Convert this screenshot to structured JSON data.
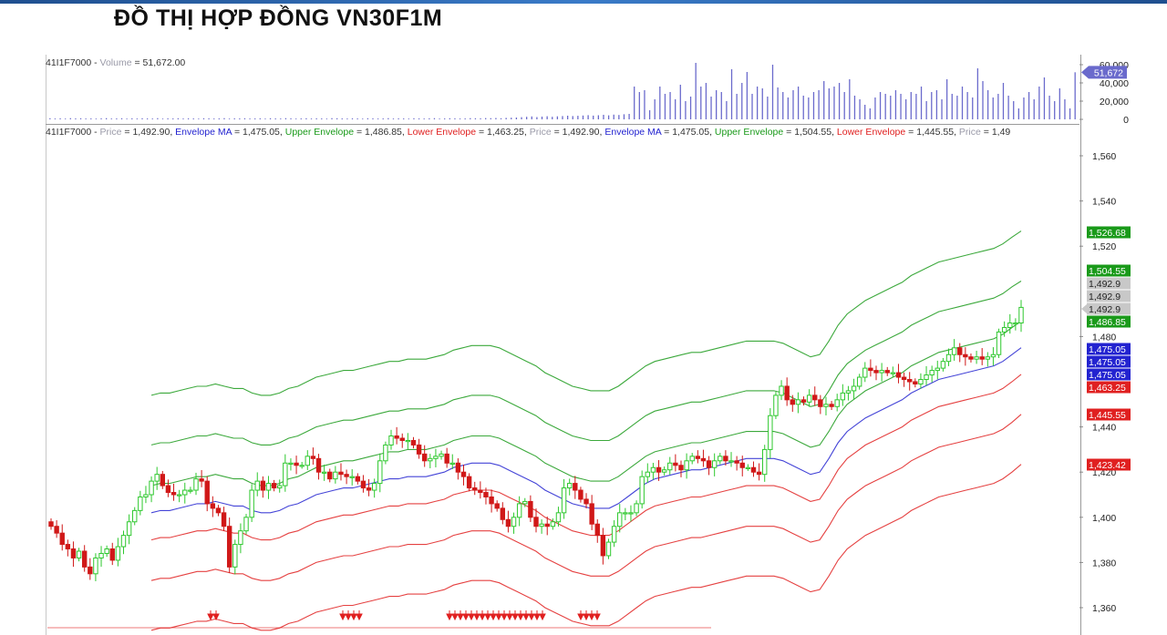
{
  "page": {
    "title": "ĐỒ THỊ HỢP ĐỒNG VN30F1M"
  },
  "legend_volume": {
    "symbol": "41I1F7000 - ",
    "volume_label": "Volume",
    "volume_text": " = 51,672.00"
  },
  "legend_price": {
    "symbol": "41I1F7000 - ",
    "items": [
      {
        "label": "Price",
        "value": " = 1,492.90, ",
        "color": "#9a9aa8"
      },
      {
        "label": "Envelope MA",
        "value": " = 1,475.05, ",
        "color": "#2323d0"
      },
      {
        "label": "Upper Envelope",
        "value": " = 1,486.85, ",
        "color": "#1a9a1a"
      },
      {
        "label": "Lower Envelope",
        "value": " = 1,463.25, ",
        "color": "#e02020"
      },
      {
        "label": "Price",
        "value": " = 1,492.90, ",
        "color": "#9a9aa8"
      },
      {
        "label": "Envelope MA",
        "value": " = 1,475.05, ",
        "color": "#2323d0"
      },
      {
        "label": "Upper Envelope",
        "value": " = 1,504.55, ",
        "color": "#1a9a1a"
      },
      {
        "label": "Lower Envelope",
        "value": " = 1,445.55, ",
        "color": "#e02020"
      },
      {
        "label": "Price",
        "value": " = 1,49",
        "color": "#9a9aa8"
      }
    ]
  },
  "chart_data": [
    {
      "type": "bar",
      "name": "Volume",
      "y_ticks": [
        "60,000",
        "40,000",
        "20,000",
        "0"
      ],
      "y_tick_values": [
        60000,
        40000,
        20000,
        0
      ],
      "ylim": [
        0,
        60000
      ],
      "last_value_tag": "51,672",
      "values": [
        1200,
        900,
        1100,
        800,
        1300,
        1000,
        1200,
        900,
        1000,
        800,
        1100,
        1300,
        900,
        1000,
        1200,
        800,
        1100,
        900,
        1200,
        1000,
        900,
        1300,
        800,
        1100,
        1000,
        1200,
        900,
        1100,
        1000,
        800,
        1200,
        1100,
        900,
        1000,
        1300,
        800,
        1100,
        1000,
        1200,
        900,
        1000,
        1100,
        800,
        1200,
        1000,
        900,
        1300,
        1100,
        800,
        1000,
        1200,
        900,
        1100,
        1000,
        800,
        1300,
        1200,
        1000,
        900,
        1100,
        1000,
        800,
        1200,
        1100,
        900,
        1000,
        1300,
        900,
        1100,
        1000,
        800,
        1200,
        1000,
        900,
        1100,
        1300,
        800,
        1000,
        1200,
        1100,
        900,
        1000,
        1300,
        1200,
        1100,
        1400,
        1300,
        1500,
        1200,
        1600,
        1800,
        2000,
        2400,
        2800,
        3200,
        2500,
        3000,
        3400,
        2800,
        3300,
        3600,
        4000,
        3600,
        3900,
        4200,
        4600,
        4100,
        4500,
        5000,
        4400,
        5200,
        4800,
        5600,
        6000,
        36000,
        30000,
        32000,
        10000,
        22000,
        36000,
        28000,
        30000,
        22000,
        38000,
        20000,
        25000,
        62000,
        36000,
        40000,
        25000,
        32000,
        30000,
        20000,
        55000,
        28000,
        40000,
        52000,
        28000,
        36000,
        34000,
        25000,
        60000,
        35000,
        30000,
        24000,
        32000,
        36000,
        26000,
        24000,
        30000,
        32000,
        42000,
        34000,
        36000,
        40000,
        30000,
        44000,
        26000,
        22000,
        16000,
        12000,
        24000,
        30000,
        28000,
        26000,
        32000,
        28000,
        22000,
        30000,
        28000,
        36000,
        20000,
        30000,
        32000,
        22000,
        44000,
        28000,
        26000,
        36000,
        30000,
        24000,
        56000,
        42000,
        32000,
        24000,
        28000,
        40000,
        26000,
        20000,
        12000,
        24000,
        30000,
        22000,
        36000,
        46000,
        26000,
        20000,
        34000,
        22000,
        12000,
        51672
      ]
    },
    {
      "type": "candlestick",
      "name": "Price",
      "y_ticks": [
        "1,560",
        "1,540",
        "1,520",
        "1,480",
        "1,440",
        "1,420",
        "1,400",
        "1,380",
        "1,360"
      ],
      "y_tick_values": [
        1560,
        1540,
        1520,
        1480,
        1440,
        1420,
        1400,
        1380,
        1360
      ],
      "ylim": [
        1355,
        1570
      ],
      "closes": [
        1396,
        1393,
        1388,
        1386,
        1382,
        1385,
        1378,
        1375,
        1382,
        1384,
        1386,
        1381,
        1387,
        1392,
        1398,
        1403,
        1409,
        1410,
        1416,
        1419,
        1414,
        1411,
        1410,
        1410,
        1412,
        1412,
        1417,
        1416,
        1406,
        1404,
        1402,
        1396,
        1378,
        1388,
        1394,
        1400,
        1412,
        1416,
        1412,
        1415,
        1413,
        1414,
        1424,
        1424,
        1423,
        1423,
        1427,
        1426,
        1420,
        1420,
        1417,
        1420,
        1419,
        1418,
        1418,
        1416,
        1413,
        1412,
        1415,
        1425,
        1432,
        1436,
        1435,
        1434,
        1434,
        1432,
        1428,
        1425,
        1426,
        1427,
        1428,
        1424,
        1424,
        1420,
        1418,
        1413,
        1412,
        1411,
        1409,
        1406,
        1404,
        1399,
        1396,
        1400,
        1406,
        1407,
        1400,
        1396,
        1397,
        1396,
        1398,
        1402,
        1413,
        1415,
        1412,
        1408,
        1406,
        1397,
        1392,
        1383,
        1389,
        1396,
        1402,
        1402,
        1402,
        1406,
        1418,
        1420,
        1422,
        1420,
        1421,
        1424,
        1423,
        1421,
        1425,
        1427,
        1426,
        1425,
        1422,
        1425,
        1427,
        1425,
        1425,
        1424,
        1422,
        1422,
        1420,
        1419,
        1430,
        1445,
        1454,
        1458,
        1452,
        1450,
        1452,
        1451,
        1454,
        1452,
        1449,
        1450,
        1449,
        1452,
        1455,
        1456,
        1458,
        1462,
        1466,
        1465,
        1464,
        1465,
        1464,
        1464,
        1462,
        1461,
        1460,
        1459,
        1461,
        1463,
        1465,
        1466,
        1469,
        1472,
        1475,
        1472,
        1471,
        1470,
        1471,
        1470,
        1471,
        1472,
        1482,
        1484,
        1486,
        1486,
        1492.9
      ],
      "last_value_tag": "1,492.9"
    },
    {
      "type": "line",
      "name": "Envelope MA",
      "color": "#2323d0",
      "values": [
        1402,
        1403,
        1403,
        1404,
        1405,
        1406,
        1406,
        1407,
        1406,
        1405,
        1405,
        1403,
        1402,
        1402,
        1403,
        1405,
        1406,
        1408,
        1410,
        1411,
        1412,
        1413,
        1413,
        1414,
        1415,
        1416,
        1417,
        1417,
        1418,
        1418,
        1418,
        1419,
        1420,
        1422,
        1423,
        1424,
        1424,
        1424,
        1423,
        1421,
        1419,
        1417,
        1415,
        1412,
        1410,
        1408,
        1406,
        1405,
        1404,
        1404,
        1404,
        1406,
        1409,
        1412,
        1415,
        1417,
        1418,
        1419,
        1420,
        1421,
        1421,
        1422,
        1423,
        1424,
        1425,
        1426,
        1426,
        1426,
        1426,
        1425,
        1423,
        1421,
        1419,
        1420,
        1426,
        1433,
        1438,
        1441,
        1444,
        1446,
        1448,
        1450,
        1452,
        1455,
        1457,
        1459,
        1461,
        1462,
        1463,
        1464,
        1465,
        1466,
        1467,
        1469,
        1472,
        1475.05
      ]
    },
    {
      "type": "line",
      "name": "Upper Envelope",
      "color": "#1a9a1a",
      "values": [
        1414,
        1415,
        1415,
        1416,
        1417,
        1418,
        1418,
        1419,
        1418,
        1417,
        1417,
        1415,
        1414,
        1414,
        1415,
        1417,
        1418,
        1420,
        1422,
        1423,
        1424,
        1425,
        1425,
        1426,
        1427,
        1428,
        1429,
        1429,
        1430,
        1430,
        1430,
        1431,
        1432,
        1434,
        1435,
        1436,
        1436,
        1436,
        1435,
        1433,
        1431,
        1429,
        1427,
        1424,
        1422,
        1420,
        1418,
        1417,
        1416,
        1416,
        1416,
        1418,
        1421,
        1424,
        1427,
        1429,
        1430,
        1431,
        1432,
        1433,
        1433,
        1434,
        1435,
        1436,
        1437,
        1438,
        1438,
        1438,
        1438,
        1437,
        1435,
        1433,
        1431,
        1432,
        1438,
        1445,
        1450,
        1453,
        1456,
        1458,
        1460,
        1462,
        1464,
        1467,
        1469,
        1471,
        1473,
        1474,
        1475,
        1476,
        1477,
        1478,
        1479,
        1481,
        1484,
        1486.85
      ]
    },
    {
      "type": "line",
      "name": "Lower Envelope",
      "color": "#e02020",
      "values": [
        1390,
        1391,
        1391,
        1392,
        1393,
        1394,
        1394,
        1395,
        1394,
        1393,
        1393,
        1391,
        1390,
        1390,
        1391,
        1393,
        1394,
        1396,
        1398,
        1399,
        1400,
        1401,
        1401,
        1402,
        1403,
        1404,
        1405,
        1405,
        1406,
        1406,
        1406,
        1407,
        1408,
        1410,
        1411,
        1412,
        1412,
        1412,
        1411,
        1409,
        1407,
        1405,
        1403,
        1400,
        1398,
        1396,
        1394,
        1393,
        1392,
        1392,
        1392,
        1394,
        1397,
        1400,
        1403,
        1405,
        1406,
        1407,
        1408,
        1409,
        1409,
        1410,
        1411,
        1412,
        1413,
        1414,
        1414,
        1414,
        1414,
        1413,
        1411,
        1409,
        1407,
        1408,
        1414,
        1421,
        1426,
        1429,
        1432,
        1434,
        1436,
        1438,
        1440,
        1443,
        1445,
        1447,
        1449,
        1450,
        1451,
        1452,
        1453,
        1454,
        1455,
        1457,
        1460,
        1463.25
      ]
    },
    {
      "type": "line",
      "name": "Upper Envelope",
      "color": "#1a9a1a",
      "values": [
        1432,
        1433,
        1433,
        1434,
        1435,
        1436,
        1436,
        1437,
        1436,
        1435,
        1435,
        1433,
        1432,
        1432,
        1433,
        1435,
        1436,
        1438,
        1440,
        1441,
        1442,
        1443,
        1443,
        1444,
        1445,
        1446,
        1447,
        1447,
        1448,
        1448,
        1448,
        1449,
        1450,
        1452,
        1453,
        1454,
        1454,
        1454,
        1453,
        1451,
        1449,
        1447,
        1445,
        1442,
        1440,
        1438,
        1436,
        1435,
        1434,
        1434,
        1434,
        1436,
        1439,
        1442,
        1445,
        1447,
        1448,
        1449,
        1450,
        1451,
        1451,
        1452,
        1453,
        1454,
        1455,
        1456,
        1456,
        1456,
        1456,
        1455,
        1453,
        1451,
        1449,
        1450,
        1456,
        1463,
        1468,
        1471,
        1474,
        1476,
        1478,
        1480,
        1482,
        1485,
        1487,
        1489,
        1491,
        1492,
        1493,
        1494,
        1495,
        1496,
        1497,
        1499,
        1502,
        1504.55
      ]
    },
    {
      "type": "line",
      "name": "Lower Envelope",
      "color": "#e02020",
      "values": [
        1372,
        1373,
        1373,
        1374,
        1375,
        1376,
        1376,
        1377,
        1376,
        1375,
        1375,
        1373,
        1372,
        1372,
        1373,
        1375,
        1376,
        1378,
        1380,
        1381,
        1382,
        1383,
        1383,
        1384,
        1385,
        1386,
        1387,
        1387,
        1388,
        1388,
        1388,
        1389,
        1390,
        1392,
        1393,
        1394,
        1394,
        1394,
        1393,
        1391,
        1389,
        1387,
        1385,
        1382,
        1380,
        1378,
        1376,
        1375,
        1374,
        1374,
        1374,
        1376,
        1379,
        1382,
        1385,
        1387,
        1388,
        1389,
        1390,
        1391,
        1391,
        1392,
        1393,
        1394,
        1395,
        1396,
        1396,
        1396,
        1396,
        1395,
        1393,
        1391,
        1389,
        1390,
        1396,
        1403,
        1408,
        1411,
        1414,
        1416,
        1418,
        1420,
        1422,
        1425,
        1427,
        1429,
        1431,
        1432,
        1433,
        1434,
        1435,
        1436,
        1437,
        1439,
        1442,
        1445.55
      ]
    },
    {
      "type": "line",
      "name": "Upper Envelope",
      "color": "#1a9a1a",
      "values": [
        1454,
        1455,
        1455,
        1456,
        1457,
        1458,
        1458,
        1459,
        1458,
        1457,
        1457,
        1455,
        1454,
        1454,
        1455,
        1457,
        1458,
        1460,
        1462,
        1463,
        1464,
        1465,
        1465,
        1466,
        1467,
        1468,
        1469,
        1469,
        1470,
        1470,
        1470,
        1471,
        1472,
        1474,
        1475,
        1476,
        1476,
        1476,
        1475,
        1473,
        1471,
        1469,
        1467,
        1464,
        1462,
        1460,
        1458,
        1457,
        1456,
        1456,
        1456,
        1458,
        1461,
        1464,
        1467,
        1469,
        1470,
        1471,
        1472,
        1473,
        1473,
        1474,
        1475,
        1476,
        1477,
        1478,
        1478,
        1478,
        1478,
        1477,
        1475,
        1473,
        1471,
        1472,
        1478,
        1485,
        1490,
        1493,
        1496,
        1498,
        1500,
        1502,
        1504,
        1507,
        1509,
        1511,
        1513,
        1514,
        1515,
        1516,
        1517,
        1518,
        1519,
        1521,
        1524,
        1526.68
      ]
    },
    {
      "type": "line",
      "name": "Lower Envelope",
      "color": "#e02020",
      "values": [
        1350,
        1351,
        1351,
        1352,
        1353,
        1354,
        1354,
        1355,
        1354,
        1353,
        1353,
        1351,
        1350,
        1350,
        1351,
        1353,
        1354,
        1356,
        1358,
        1359,
        1360,
        1361,
        1361,
        1362,
        1363,
        1364,
        1365,
        1365,
        1366,
        1366,
        1366,
        1367,
        1368,
        1370,
        1371,
        1372,
        1372,
        1372,
        1371,
        1369,
        1367,
        1365,
        1363,
        1360,
        1358,
        1356,
        1354,
        1353,
        1352,
        1352,
        1352,
        1354,
        1357,
        1360,
        1363,
        1365,
        1366,
        1367,
        1368,
        1369,
        1369,
        1370,
        1371,
        1372,
        1373,
        1374,
        1374,
        1374,
        1374,
        1373,
        1371,
        1369,
        1367,
        1368,
        1374,
        1381,
        1386,
        1389,
        1392,
        1394,
        1396,
        1398,
        1400,
        1403,
        1405,
        1407,
        1409,
        1410,
        1411,
        1412,
        1413,
        1414,
        1415,
        1417,
        1420,
        1423.42
      ]
    }
  ],
  "right_tags": [
    {
      "text": "1,526.68",
      "bg": "#1a9a1a",
      "fg": "#ffffff"
    },
    {
      "text": "1,504.55",
      "bg": "#1a9a1a",
      "fg": "#ffffff"
    },
    {
      "text": "1,492.9",
      "bg": "#c8c8c8",
      "fg": "#222222"
    },
    {
      "text": "1,492.9",
      "bg": "#c8c8c8",
      "fg": "#222222"
    },
    {
      "text": "1,492.9",
      "bg": "#c8c8c8",
      "fg": "#222222"
    },
    {
      "text": "1,486.85",
      "bg": "#1a9a1a",
      "fg": "#ffffff"
    },
    {
      "text": "1,475.05",
      "bg": "#2323d0",
      "fg": "#ffffff"
    },
    {
      "text": "1,475.05",
      "bg": "#2323d0",
      "fg": "#ffffff"
    },
    {
      "text": "1,475.05",
      "bg": "#2323d0",
      "fg": "#ffffff"
    },
    {
      "text": "1,463.25",
      "bg": "#e02020",
      "fg": "#ffffff"
    },
    {
      "text": "1,445.55",
      "bg": "#e02020",
      "fg": "#ffffff"
    },
    {
      "text": "1,423.42",
      "bg": "#e02020",
      "fg": "#ffffff"
    }
  ],
  "colors": {
    "up": "#2ec82e",
    "down": "#d01818",
    "volume": "#6a6acc",
    "arrow": "#e02020"
  }
}
